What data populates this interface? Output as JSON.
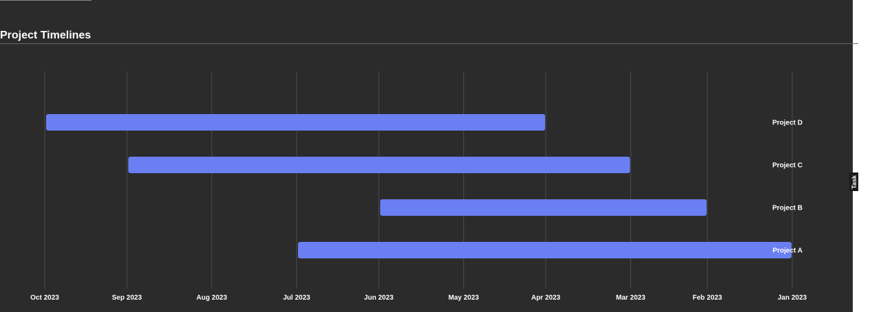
{
  "title": "Project Timelines",
  "chart_data": {
    "type": "bar",
    "orientation": "horizontal-gantt",
    "x_axis_reversed": true,
    "x_ticks": [
      "2023-10-01",
      "2023-09-01",
      "2023-08-01",
      "2023-07-01",
      "2023-06-01",
      "2023-05-01",
      "2023-04-01",
      "2023-03-01",
      "2023-02-01",
      "2023-01-01"
    ],
    "x_tick_labels": [
      "Oct 2023",
      "Sep 2023",
      "Aug 2023",
      "Jul 2023",
      "Jun 2023",
      "May 2023",
      "Apr 2023",
      "Mar 2023",
      "Feb 2023",
      "Jan 2023"
    ],
    "xlim": [
      "2023-10-01",
      "2023-01-01"
    ],
    "categories": [
      "Project D",
      "Project C",
      "Project B",
      "Project A"
    ],
    "tasks": [
      {
        "name": "Project D",
        "start": "2023-04-01",
        "end": "2023-10-01"
      },
      {
        "name": "Project C",
        "start": "2023-03-01",
        "end": "2023-09-01"
      },
      {
        "name": "Project B",
        "start": "2023-02-01",
        "end": "2023-06-01"
      },
      {
        "name": "Project A",
        "start": "2023-01-01",
        "end": "2023-07-01"
      }
    ],
    "ylabel": "Task",
    "xlabel": "",
    "grid": true,
    "bar_color": "#6a7ff2",
    "background_color": "#2b2b2b",
    "grid_color": "#4d4d4d",
    "text_color": "#ffffff"
  }
}
